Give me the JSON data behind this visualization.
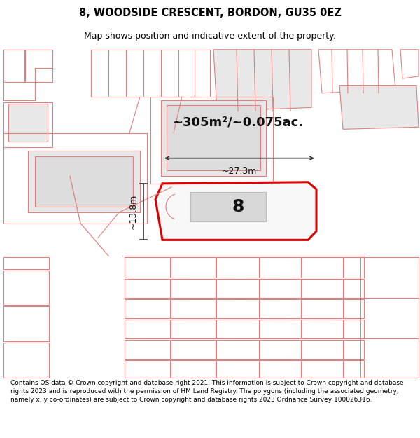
{
  "title_line1": "8, WOODSIDE CRESCENT, BORDON, GU35 0EZ",
  "title_line2": "Map shows position and indicative extent of the property.",
  "footer_text": "Contains OS data © Crown copyright and database right 2021. This information is subject to Crown copyright and database rights 2023 and is reproduced with the permission of HM Land Registry. The polygons (including the associated geometry, namely x, y co-ordinates) are subject to Crown copyright and database rights 2023 Ordnance Survey 100026316.",
  "background_color": "#ffffff",
  "plot_color": "#e8e8e8",
  "plot_edge_color": "#e08080",
  "highlight_edge_color": "#dd0000",
  "building_color": "#d8d8d8",
  "building_edge_color": "#bbbbbb",
  "dim_color": "#333333",
  "area_text": "~305m²/~0.075ac.",
  "width_label": "~27.3m",
  "height_label": "~13.8m",
  "label_text": "8",
  "title_fontsize": 10.5,
  "subtitle_fontsize": 9,
  "label_fontsize": 18,
  "area_fontsize": 13
}
